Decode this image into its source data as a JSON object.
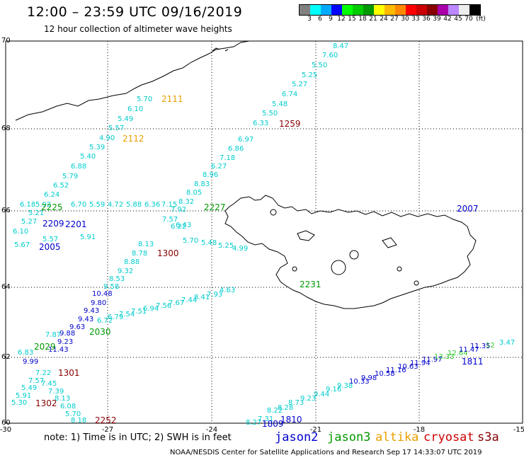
{
  "header": {
    "title": "12:00 – 23:59 UTC 09/16/2019",
    "subtitle": "12 hour collection of altimeter wave heights"
  },
  "colorbar": {
    "colors": [
      "#808080",
      "#00ffff",
      "#00aaff",
      "#0000ff",
      "#00ff00",
      "#00cc00",
      "#009900",
      "#ffff00",
      "#ffbb00",
      "#ff8800",
      "#ff0000",
      "#cc0000",
      "#880000",
      "#aa00aa",
      "#bb88ff",
      "#eeeeee",
      "#000000"
    ],
    "labels": [
      "3",
      "6",
      "9",
      "12",
      "15",
      "18",
      "21",
      "24",
      "27",
      "30",
      "33",
      "36",
      "39",
      "42",
      "45",
      "70",
      "(ft)"
    ]
  },
  "axes": {
    "lat_labels": [
      "70",
      "68",
      "66",
      "64",
      "62",
      "60"
    ],
    "lon_labels": [
      "-30",
      "-27",
      "-24",
      "-21",
      "-18",
      "-15"
    ]
  },
  "passes": [
    {
      "time": "2111",
      "color": "#e8a000"
    },
    {
      "time": "2112",
      "color": "#e8a000"
    },
    {
      "time": "1259",
      "color": "#880000"
    },
    {
      "time": "2227",
      "color": "#009900"
    },
    {
      "time": "2225",
      "color": "#009900"
    },
    {
      "time": "2209",
      "color": "#0000cc"
    },
    {
      "time": "2201",
      "color": "#0000cc"
    },
    {
      "time": "2005",
      "color": "#0000cc"
    },
    {
      "time": "1300",
      "color": "#880000"
    },
    {
      "time": "2007",
      "color": "#0000cc"
    },
    {
      "time": "2231",
      "color": "#009900"
    },
    {
      "time": "2030",
      "color": "#009900"
    },
    {
      "time": "2029",
      "color": "#009900"
    },
    {
      "time": "1301",
      "color": "#880000"
    },
    {
      "time": "1302",
      "color": "#880000"
    },
    {
      "time": "2252",
      "color": "#880000"
    },
    {
      "time": "1811",
      "color": "#0000cc"
    },
    {
      "time": "1810",
      "color": "#0000cc"
    },
    {
      "time": "1809",
      "color": "#0000cc"
    }
  ],
  "wave_values": [
    {
      "v": "8.47",
      "c": "#00cccc"
    },
    {
      "v": "7.60",
      "c": "#00cccc"
    },
    {
      "v": "5.50",
      "c": "#00cccc"
    },
    {
      "v": "5.25",
      "c": "#00cccc"
    },
    {
      "v": "5.27",
      "c": "#00cccc"
    },
    {
      "v": "6.74",
      "c": "#00cccc"
    },
    {
      "v": "5.48",
      "c": "#00cccc"
    },
    {
      "v": "5.50",
      "c": "#00cccc"
    },
    {
      "v": "6.33",
      "c": "#00cccc"
    },
    {
      "v": "6.97",
      "c": "#00cccc"
    },
    {
      "v": "6.86",
      "c": "#00cccc"
    },
    {
      "v": "7.18",
      "c": "#00cccc"
    },
    {
      "v": "6.27",
      "c": "#00cccc"
    },
    {
      "v": "8.96",
      "c": "#00cccc"
    },
    {
      "v": "8.83",
      "c": "#00cccc"
    },
    {
      "v": "8.05",
      "c": "#00cccc"
    },
    {
      "v": "8.32",
      "c": "#00cccc"
    },
    {
      "v": "7.92",
      "c": "#00cccc"
    },
    {
      "v": "7.57",
      "c": "#00cccc"
    },
    {
      "v": "5.70",
      "c": "#00cccc"
    },
    {
      "v": "6.10",
      "c": "#00cccc"
    },
    {
      "v": "5.49",
      "c": "#00cccc"
    },
    {
      "v": "5.57",
      "c": "#00cccc"
    },
    {
      "v": "4.90",
      "c": "#00cccc"
    },
    {
      "v": "5.39",
      "c": "#00cccc"
    },
    {
      "v": "5.40",
      "c": "#00cccc"
    },
    {
      "v": "6.88",
      "c": "#00cccc"
    },
    {
      "v": "5.79",
      "c": "#00cccc"
    },
    {
      "v": "6.52",
      "c": "#00cccc"
    },
    {
      "v": "6.24",
      "c": "#00cccc"
    },
    {
      "v": "5.92",
      "c": "#00cccc"
    },
    {
      "v": "6.18",
      "c": "#00cccc"
    },
    {
      "v": "5.21",
      "c": "#00cccc"
    },
    {
      "v": "5.27",
      "c": "#00cccc"
    },
    {
      "v": "6.10",
      "c": "#00cccc"
    },
    {
      "v": "5.67",
      "c": "#00cccc"
    },
    {
      "v": "5.57",
      "c": "#00cccc"
    },
    {
      "v": "5.91",
      "c": "#00cccc"
    },
    {
      "v": "6.70",
      "c": "#00cccc"
    },
    {
      "v": "5.59",
      "c": "#00cccc"
    },
    {
      "v": "4.72",
      "c": "#00cccc"
    },
    {
      "v": "5.88",
      "c": "#00cccc"
    },
    {
      "v": "6.36",
      "c": "#00cccc"
    },
    {
      "v": "7.15",
      "c": "#00cccc"
    },
    {
      "v": "6.22",
      "c": "#00cccc"
    },
    {
      "v": "6.43",
      "c": "#00cccc"
    },
    {
      "v": "5.70",
      "c": "#00cccc"
    },
    {
      "v": "5.48",
      "c": "#00cccc"
    },
    {
      "v": "5.25",
      "c": "#00cccc"
    },
    {
      "v": "4.99",
      "c": "#00cccc"
    },
    {
      "v": "8.13",
      "c": "#00cccc"
    },
    {
      "v": "8.78",
      "c": "#00cccc"
    },
    {
      "v": "8.88",
      "c": "#00cccc"
    },
    {
      "v": "9.32",
      "c": "#00cccc"
    },
    {
      "v": "8.53",
      "c": "#00cccc"
    },
    {
      "v": "9.58",
      "c": "#00cccc"
    },
    {
      "v": "10.48",
      "c": "#0000cc"
    },
    {
      "v": "9.80",
      "c": "#0000cc"
    },
    {
      "v": "9.43",
      "c": "#0000cc"
    },
    {
      "v": "9.43",
      "c": "#0000cc"
    },
    {
      "v": "9.63",
      "c": "#0000cc"
    },
    {
      "v": "9.88",
      "c": "#0000cc"
    },
    {
      "v": "9.23",
      "c": "#0000cc"
    },
    {
      "v": "11.43",
      "c": "#0000cc"
    },
    {
      "v": "7.87",
      "c": "#00cccc"
    },
    {
      "v": "6.72",
      "c": "#00cccc"
    },
    {
      "v": "6.79",
      "c": "#00cccc"
    },
    {
      "v": "7.54",
      "c": "#00cccc"
    },
    {
      "v": "7.51",
      "c": "#00cccc"
    },
    {
      "v": "6.94",
      "c": "#00cccc"
    },
    {
      "v": "7.56",
      "c": "#00cccc"
    },
    {
      "v": "7.67",
      "c": "#00cccc"
    },
    {
      "v": "7.44",
      "c": "#00cccc"
    },
    {
      "v": "8.41",
      "c": "#00cccc"
    },
    {
      "v": "7.93",
      "c": "#00cccc"
    },
    {
      "v": "4.63",
      "c": "#00cccc"
    },
    {
      "v": "6.83",
      "c": "#00cccc"
    },
    {
      "v": "9.99",
      "c": "#0000cc"
    },
    {
      "v": "7.22",
      "c": "#00cccc"
    },
    {
      "v": "7.57",
      "c": "#00cccc"
    },
    {
      "v": "7.45",
      "c": "#00cccc"
    },
    {
      "v": "5.49",
      "c": "#00cccc"
    },
    {
      "v": "7.39",
      "c": "#00cccc"
    },
    {
      "v": "5.91",
      "c": "#00cccc"
    },
    {
      "v": "8.13",
      "c": "#00cccc"
    },
    {
      "v": "5.30",
      "c": "#00cccc"
    },
    {
      "v": "6.08",
      "c": "#00cccc"
    },
    {
      "v": "5.70",
      "c": "#00cccc"
    },
    {
      "v": "8.18",
      "c": "#00cccc"
    },
    {
      "v": "8.27",
      "c": "#00cccc"
    },
    {
      "v": "7.31",
      "c": "#00cccc"
    },
    {
      "v": "8.22",
      "c": "#00cccc"
    },
    {
      "v": "8.28",
      "c": "#00cccc"
    },
    {
      "v": "8.73",
      "c": "#00cccc"
    },
    {
      "v": "9.23",
      "c": "#00cccc"
    },
    {
      "v": "9.44",
      "c": "#00cccc"
    },
    {
      "v": "9.16",
      "c": "#00cccc"
    },
    {
      "v": "9.38",
      "c": "#00cccc"
    },
    {
      "v": "10.33",
      "c": "#0000cc"
    },
    {
      "v": "9.98",
      "c": "#0000cc"
    },
    {
      "v": "10.58",
      "c": "#0000cc"
    },
    {
      "v": "11.16",
      "c": "#0000cc"
    },
    {
      "v": "10.63",
      "c": "#0000cc"
    },
    {
      "v": "11.94",
      "c": "#0000cc"
    },
    {
      "v": "11.97",
      "c": "#0000cc"
    },
    {
      "v": "13.33",
      "c": "#33cc33"
    },
    {
      "v": "12.64",
      "c": "#33cc33"
    },
    {
      "v": "11.47",
      "c": "#0000cc"
    },
    {
      "v": "11.35",
      "c": "#0000cc"
    },
    {
      "v": "12",
      "c": "#33cc33"
    },
    {
      "v": "3.47",
      "c": "#00cccc"
    }
  ],
  "footer": {
    "note": "note: 1) Time is in UTC; 2) SWH is in feet",
    "credit": "NOAA/NESDIS Center for Satellite Applications and Research   Sep 17 14:33:07 UTC 2019",
    "satellites": [
      {
        "name": "jason2",
        "color": "#0000cc"
      },
      {
        "name": "jason3",
        "color": "#009900"
      },
      {
        "name": "altika",
        "color": "#e8a000"
      },
      {
        "name": "cryosat",
        "color": "#cc0000"
      },
      {
        "name": "s3a",
        "color": "#880000"
      }
    ]
  }
}
